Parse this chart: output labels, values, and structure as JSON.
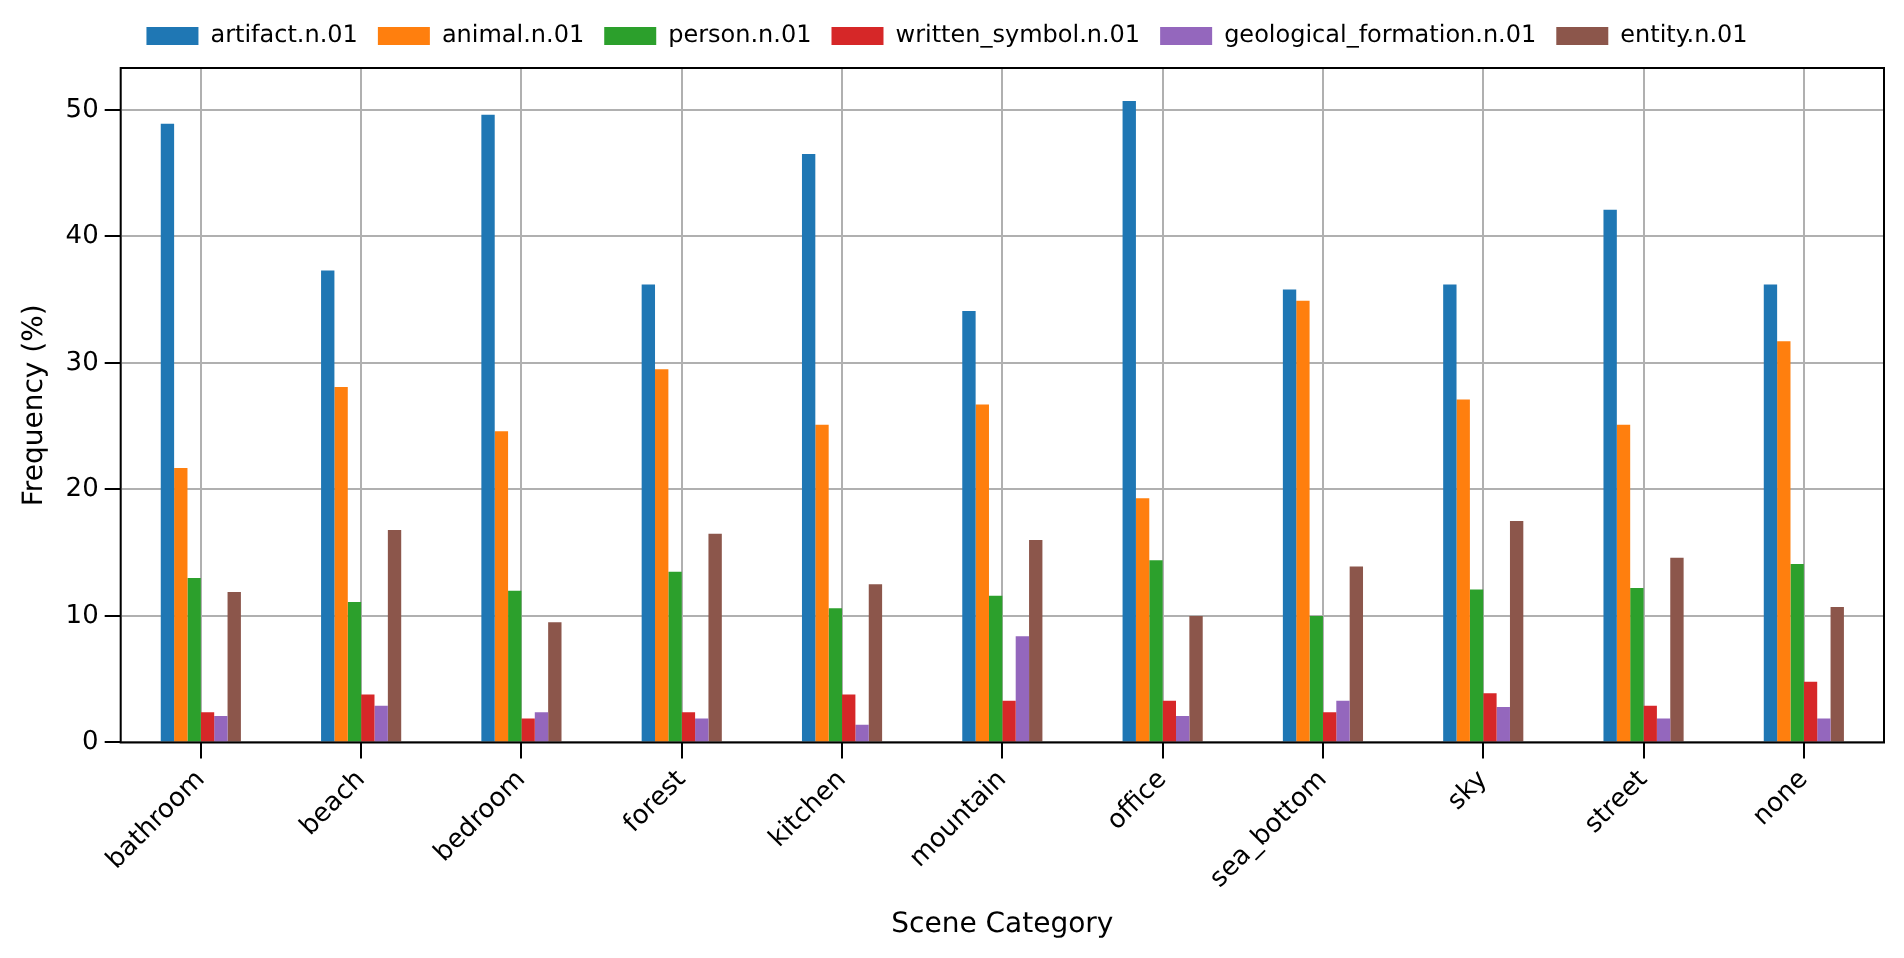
{
  "chart_data": {
    "type": "bar",
    "xlabel": "Scene Category",
    "ylabel": "Frequency (%)",
    "categories": [
      "bathroom",
      "beach",
      "bedroom",
      "forest",
      "kitchen",
      "mountain",
      "office",
      "sea_bottom",
      "sky",
      "street",
      "none"
    ],
    "series": [
      {
        "name": "artifact.n.01",
        "color": "#1f77b4",
        "values": [
          48.9,
          37.3,
          49.6,
          36.2,
          46.5,
          34.1,
          50.7,
          35.8,
          36.2,
          42.1,
          36.2
        ]
      },
      {
        "name": "animal.n.01",
        "color": "#ff7f0e",
        "values": [
          21.7,
          28.1,
          24.6,
          29.5,
          25.1,
          26.7,
          19.3,
          34.9,
          27.1,
          25.1,
          31.7
        ]
      },
      {
        "name": "person.n.01",
        "color": "#2ca02c",
        "values": [
          13.0,
          11.1,
          12.0,
          13.5,
          10.6,
          11.6,
          14.4,
          10.0,
          12.1,
          12.2,
          14.1
        ]
      },
      {
        "name": "written_symbol.n.01",
        "color": "#d62728",
        "values": [
          2.4,
          3.8,
          1.9,
          2.4,
          3.8,
          3.3,
          3.3,
          2.4,
          3.9,
          2.9,
          4.8
        ]
      },
      {
        "name": "geological_formation.n.01",
        "color": "#9467bd",
        "values": [
          2.1,
          2.9,
          2.4,
          1.9,
          1.4,
          8.4,
          2.1,
          3.3,
          2.8,
          1.9,
          1.9
        ]
      },
      {
        "name": "entity.n.01",
        "color": "#8c564b",
        "values": [
          11.9,
          16.8,
          9.5,
          16.5,
          12.5,
          16.0,
          10.0,
          13.9,
          17.5,
          14.6,
          10.7
        ]
      }
    ],
    "ylim": [
      0,
      53.3
    ],
    "yticks": [
      0,
      10,
      20,
      30,
      40,
      50
    ],
    "grid": true,
    "legend": "top"
  }
}
